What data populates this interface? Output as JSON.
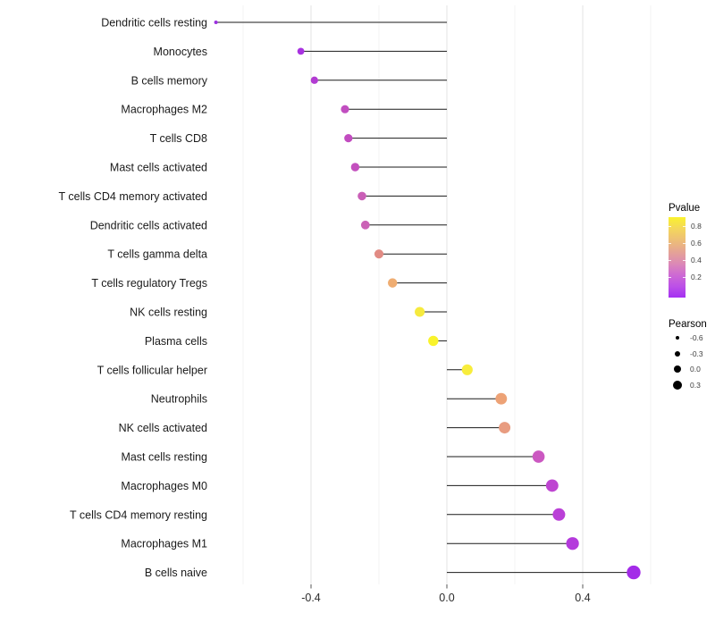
{
  "chart_data": {
    "type": "lollipop",
    "orientation": "horizontal",
    "title": "",
    "xlabel": "",
    "ylabel": "",
    "grid": true,
    "legend_position": "right",
    "xlim": [
      -0.74,
      0.62
    ],
    "x_ticks": [
      {
        "label": "-0.4",
        "value": -0.4
      },
      {
        "label": "0.0",
        "value": 0.0
      },
      {
        "label": "0.4",
        "value": 0.4
      }
    ],
    "x_minor_gridlines": [
      -0.6,
      -0.2,
      0.2,
      0.6
    ],
    "categories": [
      "Dendritic cells resting",
      "Monocytes",
      "B cells memory",
      "Macrophages M2",
      "T cells CD8",
      "Mast cells activated",
      "T cells CD4 memory activated",
      "Dendritic cells activated",
      "T cells gamma delta",
      "T cells regulatory  Tregs",
      "NK cells resting",
      "Plasma cells",
      "T cells follicular helper",
      "Neutrophils",
      "NK cells activated",
      "Mast cells resting",
      "Macrophages M0",
      "T cells CD4 memory resting",
      "Macrophages M1",
      "B cells naive"
    ],
    "series": [
      {
        "name": "Pearson",
        "values": [
          -0.68,
          -0.43,
          -0.39,
          -0.3,
          -0.29,
          -0.27,
          -0.25,
          -0.24,
          -0.2,
          -0.16,
          -0.08,
          -0.04,
          0.06,
          0.16,
          0.17,
          0.27,
          0.31,
          0.33,
          0.37,
          0.55
        ]
      }
    ],
    "pvalue_estimates": [
      0.12,
      0.13,
      0.17,
      0.24,
      0.25,
      0.26,
      0.3,
      0.31,
      0.52,
      0.63,
      0.8,
      0.85,
      0.82,
      0.61,
      0.57,
      0.28,
      0.21,
      0.19,
      0.16,
      0.08
    ],
    "point_colors": [
      "#9B30DF",
      "#A832E0",
      "#B23BD2",
      "#C14EC0",
      "#C24CC0",
      "#C350BE",
      "#CA5FB7",
      "#CB62B6",
      "#E18B84",
      "#EFAD72",
      "#F6EA3E",
      "#F9F32B",
      "#F8ED3C",
      "#EDA276",
      "#E89C80",
      "#CB58C1",
      "#BE45D1",
      "#BA40D7",
      "#B43ADC",
      "#A32BE8"
    ],
    "stem_color": "#1a1a1a",
    "legend": {
      "pvalue": {
        "title": "Pvalue",
        "tick_labels": [
          "0.8",
          "0.6",
          "0.4",
          "0.2"
        ],
        "gradient_stops": [
          {
            "offset": 0,
            "color": "#A430F2"
          },
          {
            "offset": 14,
            "color": "#BC50E7"
          },
          {
            "offset": 29,
            "color": "#CF6BD2"
          },
          {
            "offset": 43,
            "color": "#DC8BB4"
          },
          {
            "offset": 57,
            "color": "#E5A495"
          },
          {
            "offset": 71,
            "color": "#EDBE77"
          },
          {
            "offset": 86,
            "color": "#F4D75B"
          },
          {
            "offset": 100,
            "color": "#FAF22E"
          }
        ]
      },
      "pearson": {
        "title": "Pearson",
        "entries": [
          {
            "label": "-0.6",
            "value": -0.6
          },
          {
            "label": "-0.3",
            "value": -0.3
          },
          {
            "label": "0.0",
            "value": 0.0
          },
          {
            "label": "0.3",
            "value": 0.3
          }
        ]
      }
    }
  }
}
